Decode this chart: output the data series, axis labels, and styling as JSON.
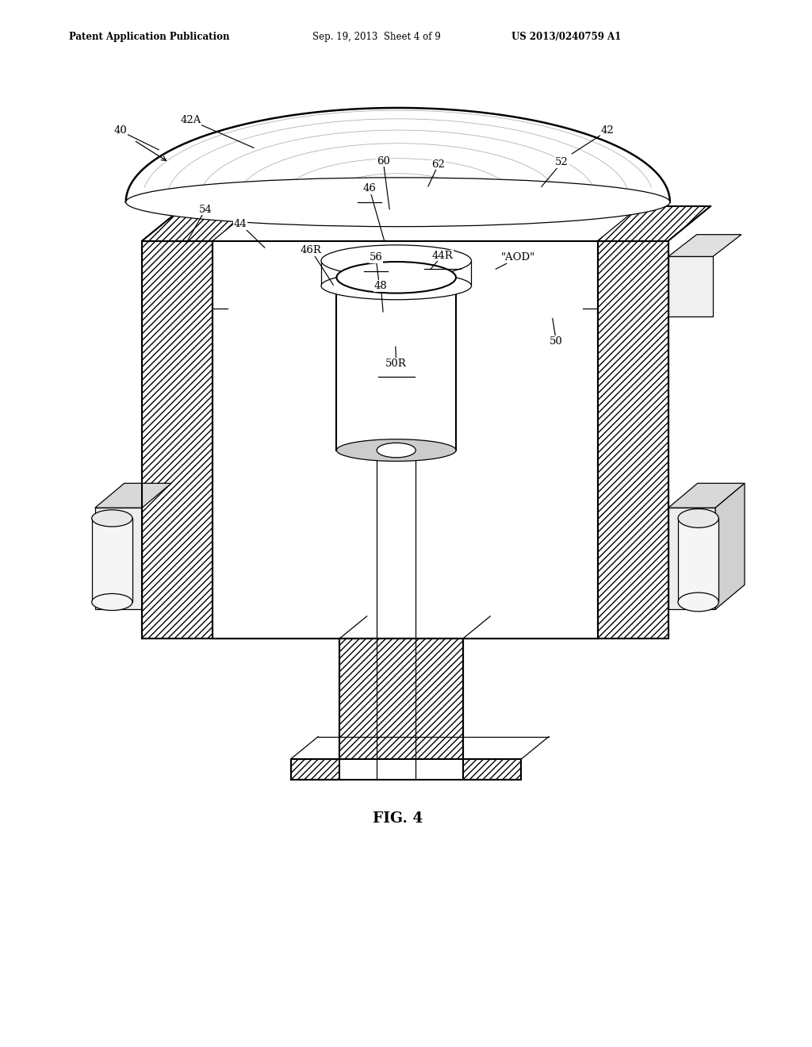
{
  "bg_color": "#ffffff",
  "line_color": "#000000",
  "fig_width": 10.24,
  "fig_height": 13.2,
  "header_left": "Patent Application Publication",
  "header_center": "Sep. 19, 2013  Sheet 4 of 9",
  "header_right": "US 2013/0240759 A1",
  "caption": "FIG. 4",
  "labels_pos": {
    "40": [
      0.148,
      0.875,
      0.198,
      0.856,
      false
    ],
    "42A": [
      0.235,
      0.885,
      0.315,
      0.858,
      false
    ],
    "42": [
      0.748,
      0.875,
      0.702,
      0.852,
      false
    ],
    "52": [
      0.692,
      0.845,
      0.665,
      0.82,
      false
    ],
    "60": [
      0.472,
      0.846,
      0.48,
      0.798,
      false
    ],
    "62": [
      0.54,
      0.843,
      0.526,
      0.82,
      false
    ],
    "46": [
      0.455,
      0.82,
      0.474,
      0.768,
      true
    ],
    "44": [
      0.296,
      0.786,
      0.328,
      0.762,
      false
    ],
    "\"AOD\"": [
      0.638,
      0.754,
      0.608,
      0.742,
      false
    ],
    "44R": [
      0.545,
      0.756,
      0.528,
      0.741,
      true
    ],
    "46R": [
      0.383,
      0.761,
      0.412,
      0.726,
      false
    ],
    "54": [
      0.253,
      0.8,
      0.228,
      0.766,
      false
    ],
    "56": [
      0.463,
      0.754,
      0.467,
      0.728,
      true
    ],
    "48": [
      0.469,
      0.727,
      0.472,
      0.7,
      false
    ],
    "50": [
      0.685,
      0.674,
      0.68,
      0.698,
      false
    ],
    "50R": [
      0.488,
      0.653,
      0.487,
      0.671,
      true
    ]
  }
}
